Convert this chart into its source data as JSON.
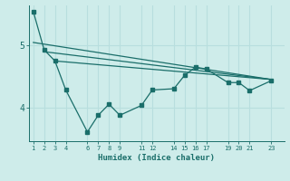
{
  "xlabel": "Humidex (Indice chaleur)",
  "bg_color": "#ceecea",
  "grid_color": "#b8dede",
  "line_color": "#1a6e6a",
  "x_ticks": [
    1,
    2,
    3,
    4,
    6,
    7,
    8,
    9,
    11,
    12,
    14,
    15,
    16,
    17,
    19,
    20,
    21,
    23
  ],
  "yticks": [
    4,
    5
  ],
  "ylim": [
    3.45,
    5.65
  ],
  "xlim": [
    0.6,
    24.2
  ],
  "data_x": [
    1,
    2,
    3,
    4,
    6,
    7,
    8,
    9,
    11,
    12,
    14,
    15,
    16,
    17,
    19,
    20,
    21,
    23
  ],
  "data_y": [
    5.55,
    4.93,
    4.75,
    4.28,
    3.6,
    3.87,
    4.05,
    3.87,
    4.03,
    4.28,
    4.3,
    4.52,
    4.65,
    4.62,
    4.4,
    4.4,
    4.27,
    4.43
  ],
  "trend1_x": [
    1,
    23
  ],
  "trend1_y": [
    5.05,
    4.45
  ],
  "trend2_x": [
    2,
    23
  ],
  "trend2_y": [
    4.9,
    4.45
  ],
  "trend3_x": [
    3,
    23
  ],
  "trend3_y": [
    4.75,
    4.45
  ]
}
